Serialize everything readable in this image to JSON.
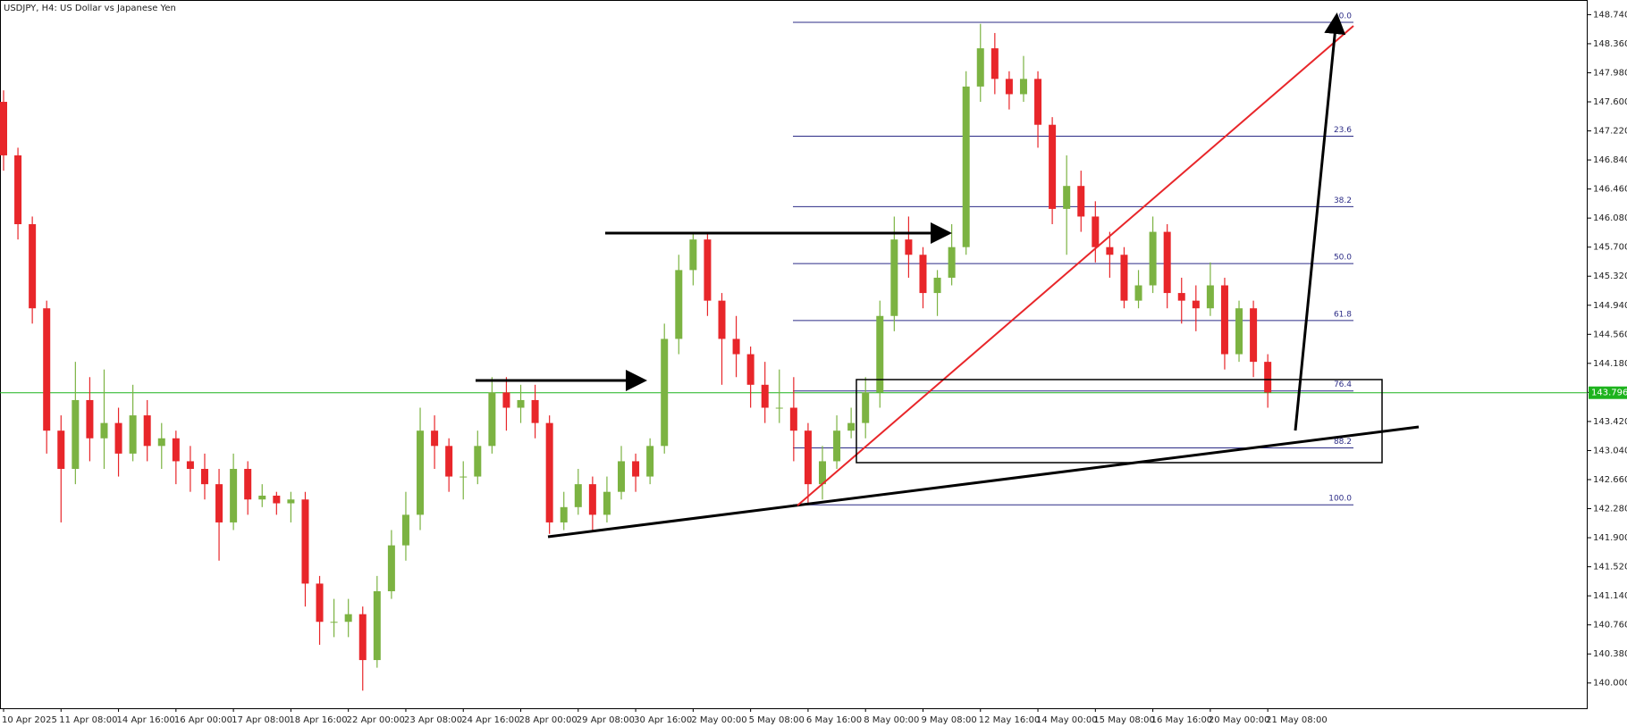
{
  "chart_data": {
    "type": "candlestick",
    "title": "USDJPY, H4:  US Dollar vs Japanese Yen",
    "categories": [
      "10 Apr 2025",
      null,
      null,
      null,
      "11 Apr 08:00",
      null,
      null,
      null,
      "14 Apr 16:00",
      null,
      null,
      null,
      "16 Apr 00:00",
      null,
      null,
      null,
      "17 Apr 08:00",
      null,
      null,
      null,
      "18 Apr 16:00",
      null,
      null,
      null,
      "22 Apr 00:00",
      null,
      null,
      null,
      "23 Apr 08:00",
      null,
      null,
      null,
      "24 Apr 16:00",
      null,
      null,
      null,
      "28 Apr 00:00",
      null,
      null,
      null,
      "29 Apr 08:00",
      null,
      null,
      null,
      "30 Apr 16:00",
      null,
      null,
      null,
      "2 May 00:00",
      null,
      null,
      null,
      "5 May 08:00",
      null,
      null,
      null,
      "6 May 16:00",
      null,
      null,
      null,
      "8 May 00:00",
      null,
      null,
      null,
      "9 May 08:00",
      null,
      null,
      null,
      "12 May 16:00",
      null,
      null,
      null,
      "14 May 00:00",
      null,
      null,
      null,
      "15 May 08:00",
      null,
      null,
      null,
      "16 May 16:00",
      null,
      null,
      null,
      "20 May 00:00",
      null,
      null,
      null,
      "21 May 08:00"
    ],
    "open": [
      147.6,
      146.9,
      146.0,
      144.9,
      143.3,
      142.8,
      143.7,
      143.2,
      143.4,
      143.0,
      143.5,
      143.1,
      143.2,
      142.9,
      142.8,
      142.6,
      142.1,
      142.8,
      142.4,
      142.45,
      142.35,
      142.4,
      141.3,
      140.8,
      140.8,
      140.9,
      140.3,
      141.2,
      141.8,
      142.2,
      143.3,
      143.1,
      142.7,
      142.7,
      143.1,
      143.8,
      143.6,
      143.7,
      143.4,
      142.1,
      142.3,
      142.6,
      142.2,
      142.5,
      142.9,
      142.7,
      143.1,
      144.5,
      145.4,
      145.8,
      145.0,
      144.5,
      144.3,
      143.9,
      143.6,
      143.6,
      143.3,
      142.6,
      142.9,
      143.3,
      143.4,
      143.8,
      144.8,
      145.8,
      145.6,
      145.1,
      145.3,
      145.7,
      147.8,
      148.3,
      147.9,
      147.7,
      147.9,
      147.3,
      146.2,
      146.5,
      146.1,
      145.7,
      145.6,
      145.0,
      145.2,
      145.9,
      145.1,
      145.0,
      144.9,
      145.2,
      144.3,
      144.9,
      144.2
    ],
    "high": [
      147.75,
      147.0,
      146.1,
      145.0,
      143.5,
      144.2,
      144.0,
      144.1,
      143.6,
      143.9,
      143.7,
      143.4,
      143.3,
      143.1,
      143.0,
      142.8,
      143.0,
      142.9,
      142.6,
      142.5,
      142.5,
      142.5,
      141.4,
      141.1,
      141.1,
      141.0,
      141.4,
      142.0,
      142.5,
      143.6,
      143.5,
      143.2,
      142.9,
      143.3,
      144.0,
      144.0,
      143.9,
      143.9,
      143.5,
      142.5,
      142.8,
      142.7,
      142.7,
      143.1,
      143.0,
      143.2,
      144.7,
      145.6,
      145.9,
      145.9,
      145.1,
      144.8,
      144.4,
      144.2,
      144.1,
      144.0,
      143.4,
      143.1,
      143.5,
      143.6,
      144.0,
      145.0,
      146.1,
      146.1,
      145.7,
      145.4,
      146.0,
      148.0,
      148.62,
      148.5,
      148.0,
      148.2,
      148.0,
      147.4,
      146.9,
      146.7,
      146.3,
      145.9,
      145.7,
      145.4,
      146.1,
      146.0,
      145.3,
      145.2,
      145.5,
      145.3,
      145.0,
      145.0,
      144.3
    ],
    "low": [
      146.7,
      145.8,
      144.7,
      143.0,
      142.1,
      142.6,
      142.9,
      142.8,
      142.7,
      142.9,
      142.9,
      142.8,
      142.6,
      142.5,
      142.4,
      141.6,
      142.0,
      142.2,
      142.3,
      142.2,
      142.1,
      141.0,
      140.5,
      140.6,
      140.6,
      139.9,
      140.2,
      141.1,
      141.6,
      142.0,
      142.8,
      142.5,
      142.4,
      142.6,
      143.0,
      143.3,
      143.4,
      143.2,
      141.95,
      142.0,
      142.2,
      142.0,
      142.1,
      142.4,
      142.5,
      142.6,
      143.0,
      144.3,
      145.2,
      144.8,
      143.9,
      144.0,
      143.6,
      143.4,
      143.4,
      142.9,
      142.35,
      142.4,
      142.8,
      143.2,
      143.2,
      143.6,
      144.6,
      145.3,
      144.9,
      144.8,
      145.2,
      145.6,
      147.6,
      147.7,
      147.5,
      147.6,
      147.0,
      146.0,
      145.6,
      145.9,
      145.5,
      145.3,
      144.9,
      144.9,
      145.1,
      144.9,
      144.7,
      144.6,
      144.8,
      144.1,
      144.2,
      144.0,
      143.6
    ],
    "close": [
      146.9,
      146.0,
      144.9,
      143.3,
      142.8,
      143.7,
      143.2,
      143.4,
      143.0,
      143.5,
      143.1,
      143.2,
      142.9,
      142.8,
      142.6,
      142.1,
      142.8,
      142.4,
      142.45,
      142.35,
      142.4,
      141.3,
      140.8,
      140.8,
      140.9,
      140.3,
      141.2,
      141.8,
      142.2,
      143.3,
      143.1,
      142.7,
      142.7,
      143.1,
      143.8,
      143.6,
      143.7,
      143.4,
      142.1,
      142.3,
      142.6,
      142.2,
      142.5,
      142.9,
      142.7,
      143.1,
      144.5,
      145.4,
      145.8,
      145.0,
      144.5,
      144.3,
      143.9,
      143.6,
      143.6,
      143.3,
      142.6,
      142.9,
      143.3,
      143.4,
      143.8,
      144.8,
      145.8,
      145.6,
      145.1,
      145.3,
      145.7,
      147.8,
      148.3,
      147.9,
      147.7,
      147.9,
      147.3,
      146.2,
      146.5,
      146.1,
      145.7,
      145.6,
      145.0,
      145.2,
      145.9,
      145.1,
      145.0,
      144.9,
      145.2,
      144.3,
      144.9,
      144.2,
      143.8
    ],
    "up_color": "#7cb342",
    "down_color": "#e8262a",
    "ylim": [
      139.67,
      148.92
    ],
    "yticks": [
      {
        "value": 140,
        "label": "140.000"
      },
      {
        "value": 140.38,
        "label": "140.380"
      },
      {
        "value": 140.76,
        "label": "140.760"
      },
      {
        "value": 141.14,
        "label": "141.140"
      },
      {
        "value": 141.52,
        "label": "141.520"
      },
      {
        "value": 141.9,
        "label": "141.900"
      },
      {
        "value": 142.28,
        "label": "142.280"
      },
      {
        "value": 142.66,
        "label": "142.660"
      },
      {
        "value": 143.04,
        "label": "143.040"
      },
      {
        "value": 143.42,
        "label": "143.420"
      },
      {
        "value": 143.8,
        "label": "143.800"
      },
      {
        "value": 144.18,
        "label": "144.180"
      },
      {
        "value": 144.56,
        "label": "144.560"
      },
      {
        "value": 144.94,
        "label": "144.940"
      },
      {
        "value": 145.32,
        "label": "145.320"
      },
      {
        "value": 145.7,
        "label": "145.700"
      },
      {
        "value": 146.08,
        "label": "146.080"
      },
      {
        "value": 146.46,
        "label": "146.460"
      },
      {
        "value": 146.84,
        "label": "146.840"
      },
      {
        "value": 147.22,
        "label": "147.220"
      },
      {
        "value": 147.6,
        "label": "147.600"
      },
      {
        "value": 147.98,
        "label": "147.980"
      },
      {
        "value": 148.36,
        "label": "148.360"
      },
      {
        "value": 148.74,
        "label": "148.740"
      }
    ],
    "current_price": 143.796,
    "current_price_color": "#1db31d",
    "fibonacci": {
      "high": 148.64,
      "low": 142.33,
      "color": "#2b2b86",
      "levels": [
        {
          "value": 0,
          "label": "0.0"
        },
        23.6,
        38.2,
        {
          "value": 50,
          "label": "50.0"
        },
        61.8,
        76.4,
        88.2,
        {
          "value": 100,
          "label": "100.0"
        }
      ]
    }
  }
}
